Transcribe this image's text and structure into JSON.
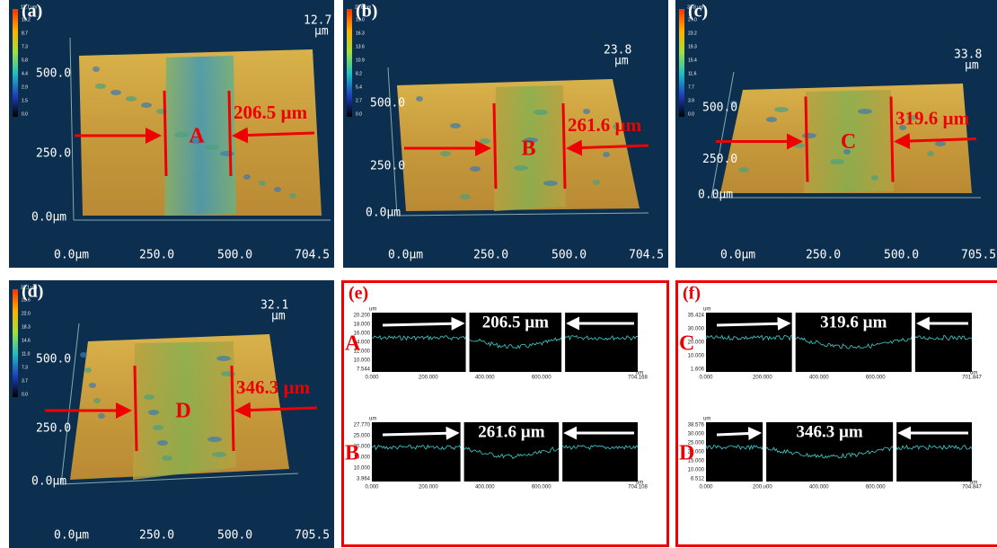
{
  "panels": [
    {
      "label": "(a)",
      "colorbar_title": "12.7 µm",
      "colorbar_ticks": [
        "10.2",
        "8.7",
        "7.3",
        "5.8",
        "4.4",
        "2.9",
        "1.5",
        "0.0"
      ],
      "z_max": "12.7",
      "z_unit": "µm",
      "y_ticks": [
        "500.0",
        "250.0",
        "0.0µm"
      ],
      "x_ticks": [
        "0.0µm",
        "250.0",
        "500.0",
        "704.5"
      ],
      "track": "A",
      "width": "206.5 µm"
    },
    {
      "label": "(b)",
      "colorbar_title": "23.8 µm",
      "colorbar_ticks": [
        "19.0",
        "16.3",
        "13.6",
        "10.9",
        "8.2",
        "5.4",
        "2.7",
        "0.0"
      ],
      "z_max": "23.8",
      "z_unit": "µm",
      "y_ticks": [
        "500.0",
        "250.0",
        "0.0µm"
      ],
      "x_ticks": [
        "0.0µm",
        "250.0",
        "500.0",
        "704.5"
      ],
      "track": "B",
      "width": "261.6 µm"
    },
    {
      "label": "(c)",
      "colorbar_title": "33.8 µm",
      "colorbar_ticks": [
        "27.0",
        "23.2",
        "19.3",
        "15.4",
        "11.6",
        "7.7",
        "3.9",
        "0.0"
      ],
      "z_max": "33.8",
      "z_unit": "µm",
      "y_ticks": [
        "500.0",
        "250.0",
        "0.0µm"
      ],
      "x_ticks": [
        "0.0µm",
        "250.0",
        "500.0",
        "705.5"
      ],
      "track": "C",
      "width": "319.6 µm"
    },
    {
      "label": "(d)",
      "colorbar_title": "32.1 µm",
      "colorbar_ticks": [
        "25.6",
        "22.0",
        "18.3",
        "14.6",
        "11.0",
        "7.3",
        "3.7",
        "0.0"
      ],
      "z_max": "32.1",
      "z_unit": "µm",
      "y_ticks": [
        "500.0",
        "250.0",
        "0.0µm"
      ],
      "x_ticks": [
        "0.0µm",
        "250.0",
        "500.0",
        "705.5"
      ],
      "track": "D",
      "width": "346.3 µm"
    }
  ],
  "profiles": [
    {
      "label": "(e)",
      "plots": [
        {
          "track": "A",
          "width": "206.5 µm",
          "y_unit": "um",
          "y_ticks": [
            "20.200",
            "18.000",
            "16.000",
            "14.000",
            "12.000",
            "10.000",
            "7.544"
          ],
          "x_ticks": [
            "0.000",
            "200.000",
            "400.000",
            "600.000",
            "704.168"
          ],
          "x_unit": "um"
        },
        {
          "track": "B",
          "width": "261.6 µm",
          "y_unit": "um",
          "y_ticks": [
            "27.770",
            "25.000",
            "20.000",
            "15.000",
            "10.000",
            "3.964"
          ],
          "x_ticks": [
            "0.000",
            "200.000",
            "400.000",
            "600.000",
            "704.108"
          ],
          "x_unit": "um"
        }
      ]
    },
    {
      "label": "(f)",
      "plots": [
        {
          "track": "C",
          "width": "319.6 µm",
          "y_unit": "um",
          "y_ticks": [
            "35.424",
            "30.000",
            "20.000",
            "10.000",
            "1.606"
          ],
          "x_ticks": [
            "0.000",
            "200.000",
            "400.000",
            "600.000",
            "701.847"
          ],
          "x_unit": "um"
        },
        {
          "track": "D",
          "width": "346.3 µm",
          "y_unit": "um",
          "y_ticks": [
            "38.576",
            "30.000",
            "25.000",
            "20.000",
            "15.000",
            "10.000",
            "6.512"
          ],
          "x_ticks": [
            "0.000",
            "200.000",
            "400.000",
            "600.000",
            "704.847"
          ],
          "x_unit": "um"
        }
      ]
    }
  ]
}
